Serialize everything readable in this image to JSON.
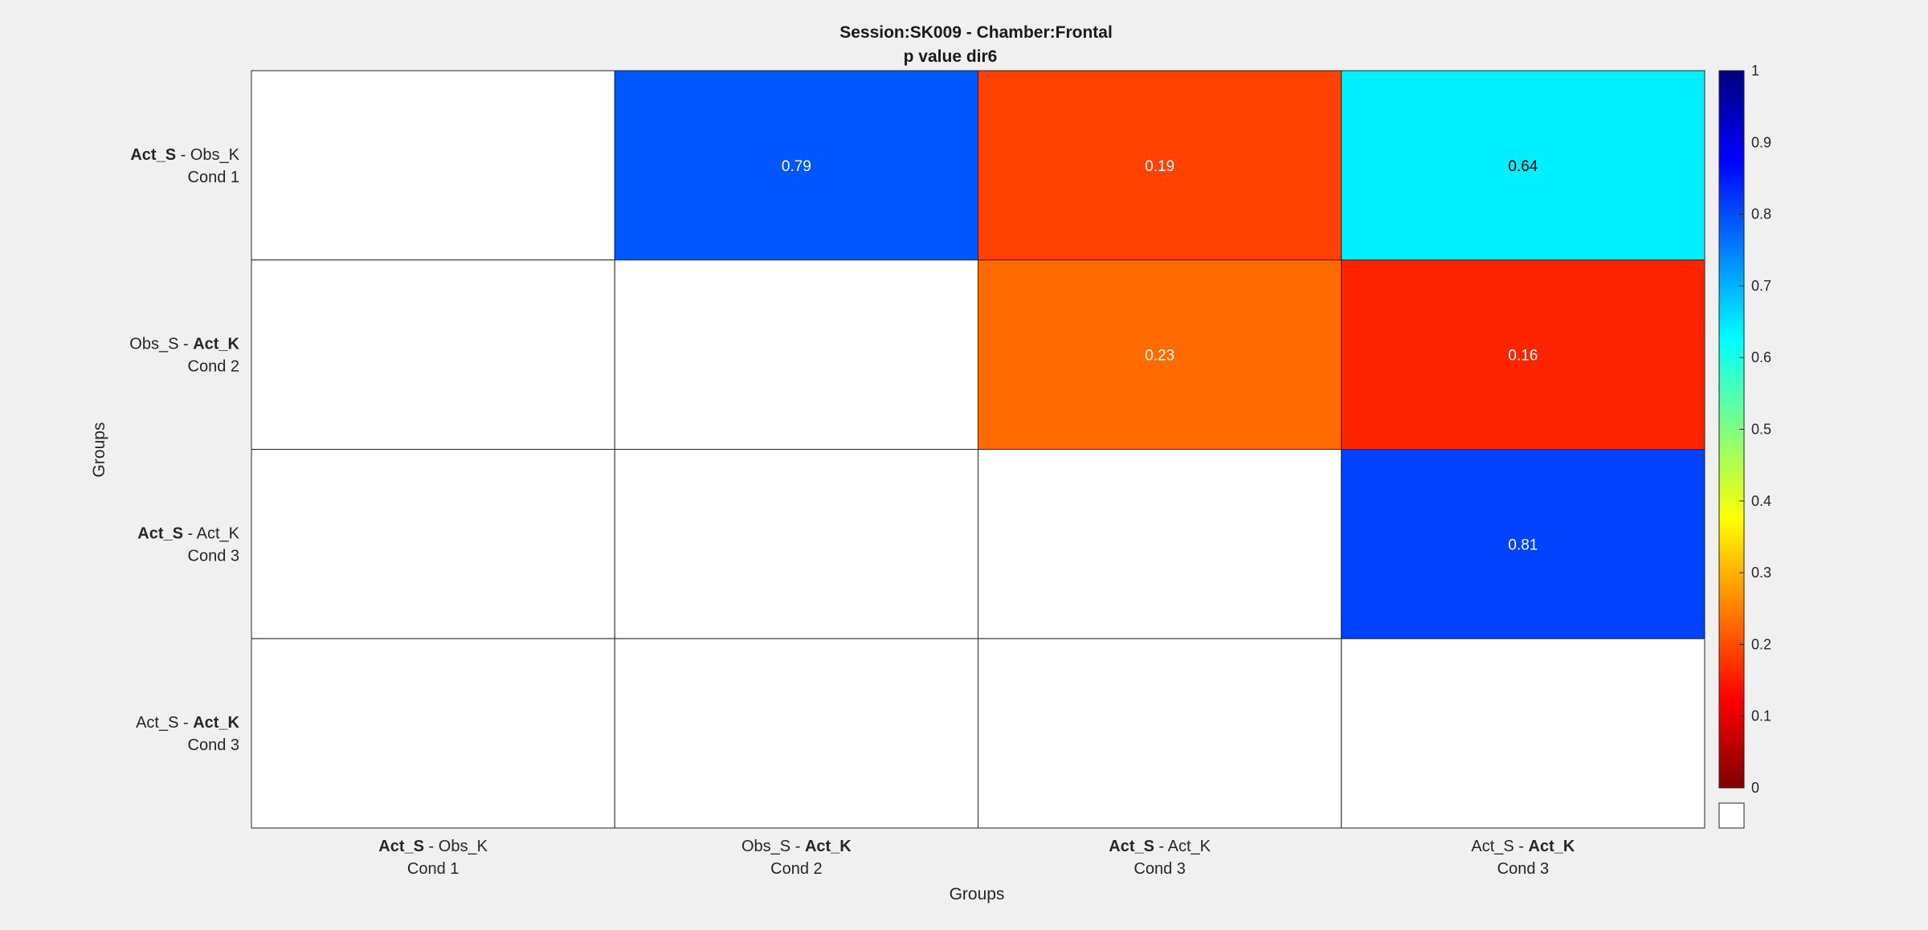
{
  "chart_data": {
    "type": "heatmap",
    "title": "Session:SK009 - Chamber:Frontal",
    "subtitle": "p value dir6",
    "xlabel": "Groups",
    "ylabel": "Groups",
    "categories": [
      {
        "part1": "Act_S",
        "part1_bold": true,
        "sep": " - ",
        "part2": "Obs_K",
        "part2_bold": false,
        "cond": "Cond 1"
      },
      {
        "part1": "Obs_S",
        "part1_bold": false,
        "sep": " - ",
        "part2": "Act_K",
        "part2_bold": true,
        "cond": "Cond 2"
      },
      {
        "part1": "Act_S",
        "part1_bold": true,
        "sep": " - ",
        "part2": "Act_K",
        "part2_bold": false,
        "cond": "Cond 3"
      },
      {
        "part1": "Act_S",
        "part1_bold": false,
        "sep": " - ",
        "part2": "Act_K",
        "part2_bold": true,
        "cond": "Cond 3"
      }
    ],
    "values": [
      [
        null,
        0.79,
        0.19,
        0.64
      ],
      [
        null,
        null,
        0.23,
        0.16
      ],
      [
        null,
        null,
        null,
        0.81
      ],
      [
        null,
        null,
        null,
        null
      ]
    ],
    "value_labels": [
      [
        "",
        "0.79",
        "0.19",
        "0.64"
      ],
      [
        "",
        "",
        "0.23",
        "0.16"
      ],
      [
        "",
        "",
        "",
        "0.81"
      ],
      [
        "",
        "",
        "",
        ""
      ]
    ],
    "colorbar": {
      "colormap": "jet-reversed",
      "range": [
        0,
        1
      ],
      "ticks": [
        "0",
        "0.1",
        "0.2",
        "0.3",
        "0.4",
        "0.5",
        "0.6",
        "0.7",
        "0.8",
        "0.9",
        "1"
      ],
      "nan_color": "#ffffff"
    },
    "grid": true
  }
}
